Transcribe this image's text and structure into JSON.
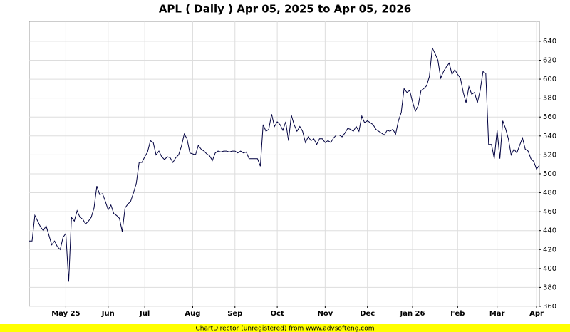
{
  "chart_data": {
    "type": "line",
    "title": "APL ( Daily ) Apr 05, 2025 to Apr 05, 2026",
    "footer": "ChartDirector (unregistered) from www.advsofteng.com",
    "series": [
      {
        "color": "#000040",
        "values": [
          429,
          429,
          456,
          450,
          444,
          440,
          445,
          435,
          425,
          429,
          423,
          420,
          433,
          437,
          386,
          454,
          450,
          461,
          454,
          452,
          447,
          450,
          454,
          464,
          487,
          478,
          479,
          471,
          462,
          467,
          458,
          456,
          453,
          439,
          464,
          468,
          471,
          480,
          490,
          512,
          512,
          518,
          523,
          535,
          533,
          520,
          524,
          518,
          515,
          518,
          517,
          512,
          517,
          520,
          529,
          542,
          537,
          522,
          521,
          520,
          530,
          526,
          524,
          521,
          519,
          514,
          522,
          524,
          523,
          524,
          524,
          523,
          524,
          524,
          522,
          524,
          522,
          523,
          516,
          516,
          516,
          516,
          508,
          552,
          545,
          547,
          563,
          550,
          555,
          552,
          546,
          555,
          535,
          562,
          552,
          545,
          550,
          545,
          533,
          539,
          535,
          537,
          531,
          537,
          537,
          533,
          535,
          533,
          538,
          541,
          541,
          539,
          543,
          548,
          547,
          545,
          550,
          545,
          561,
          554,
          556,
          554,
          552,
          547,
          545,
          543,
          541,
          546,
          545,
          547,
          542,
          556,
          565,
          590,
          586,
          588,
          576,
          566,
          572,
          588,
          590,
          593,
          603,
          633,
          627,
          620,
          601,
          608,
          613,
          617,
          605,
          610,
          605,
          601,
          586,
          575,
          592,
          584,
          586,
          575,
          588,
          608,
          606,
          531,
          531,
          516,
          546,
          516,
          556,
          548,
          537,
          520,
          526,
          522,
          530,
          538,
          526,
          524,
          516,
          513,
          505,
          509
        ]
      }
    ],
    "xlim": [
      0,
      181
    ],
    "xticks": [
      {
        "value": 13,
        "label": "May 25"
      },
      {
        "value": 28,
        "label": "Jun"
      },
      {
        "value": 41,
        "label": "Jul"
      },
      {
        "value": 58,
        "label": "Aug"
      },
      {
        "value": 73,
        "label": "Sep"
      },
      {
        "value": 88,
        "label": "Oct"
      },
      {
        "value": 105,
        "label": "Nov"
      },
      {
        "value": 120,
        "label": "Dec"
      },
      {
        "value": 136,
        "label": "Jan 26"
      },
      {
        "value": 152,
        "label": "Feb"
      },
      {
        "value": 166,
        "label": "Mar"
      },
      {
        "value": 180,
        "label": "Apr"
      }
    ],
    "ylim": [
      360,
      661
    ],
    "yticks": [
      360,
      380,
      400,
      420,
      440,
      460,
      480,
      500,
      520,
      540,
      560,
      580,
      600,
      620,
      640
    ],
    "grid": true
  }
}
